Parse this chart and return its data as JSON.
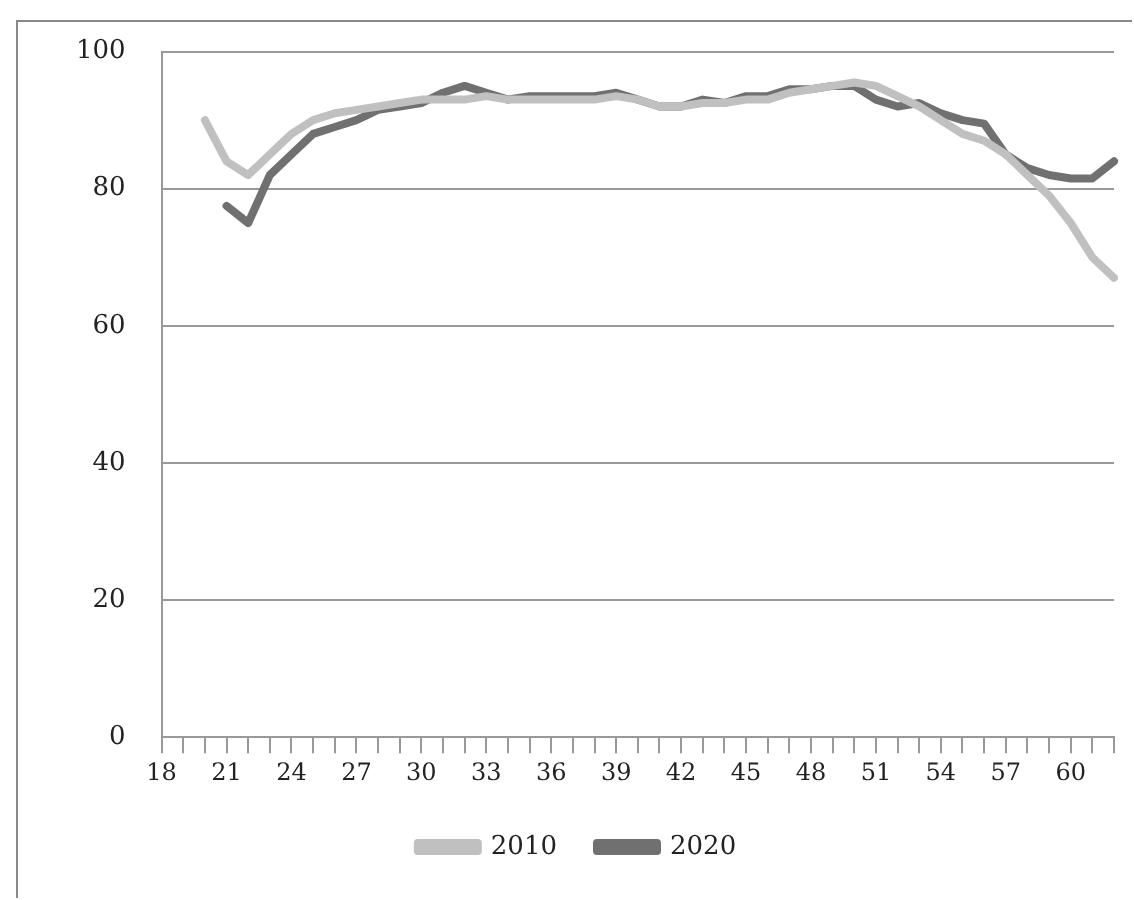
{
  "chart_data": {
    "type": "line",
    "categories": [
      "18",
      null,
      null,
      "21",
      null,
      null,
      "24",
      null,
      null,
      "27",
      null,
      null,
      "30",
      null,
      null,
      "33",
      null,
      null,
      "36",
      null,
      null,
      "39",
      null,
      null,
      "42",
      null,
      null,
      "45",
      null,
      null,
      "48",
      null,
      null,
      "51",
      null,
      null,
      "54",
      null,
      null,
      "57",
      null,
      null,
      "60",
      null,
      null
    ],
    "series": [
      {
        "name": "2010",
        "color": "#c0c0c0",
        "values": [
          null,
          null,
          90,
          84,
          82,
          85,
          88,
          90,
          91,
          91.5,
          92,
          92.5,
          93,
          93,
          93,
          93.5,
          93,
          93,
          93,
          93,
          93,
          93.5,
          93,
          92,
          92,
          92.5,
          92.5,
          93,
          93,
          94,
          94.5,
          95,
          95.5,
          95,
          93.5,
          92,
          90,
          88,
          87,
          85,
          82,
          79,
          75,
          70,
          67
        ]
      },
      {
        "name": "2020",
        "color": "#707070",
        "values": [
          null,
          null,
          null,
          77.5,
          75,
          82,
          85,
          88,
          89,
          90,
          91.5,
          92,
          92.5,
          94,
          95,
          94,
          93,
          93.5,
          93.5,
          93.5,
          93.5,
          94,
          93,
          92,
          92,
          93,
          92.5,
          93.5,
          93.5,
          94.5,
          94.5,
          95,
          95,
          93,
          92,
          92.5,
          91,
          90,
          89.5,
          85,
          83,
          82,
          81.5,
          81.5,
          84
        ]
      }
    ],
    "ylim": [
      0,
      100
    ],
    "yticks": [
      0,
      20,
      40,
      60,
      80,
      100
    ],
    "grid": "y",
    "legend": "bottom",
    "marker": "none",
    "line_style": "solid"
  }
}
